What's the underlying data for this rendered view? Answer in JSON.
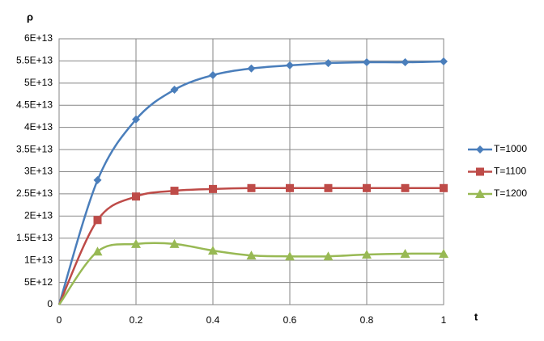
{
  "chart_data": {
    "type": "scatter",
    "xlabel": "t",
    "ylabel": "ρ",
    "x": [
      0,
      0.1,
      0.2,
      0.3,
      0.4,
      0.5,
      0.6,
      0.7,
      0.8,
      0.9,
      1
    ],
    "series": [
      {
        "name": "T=1000",
        "color": "#4a7ebb",
        "marker": "diamond",
        "values": [
          0,
          28100000000000.0,
          41800000000000.0,
          48500000000000.0,
          51800000000000.0,
          53300000000000.0,
          54000000000000.0,
          54500000000000.0,
          54700000000000.0,
          54700000000000.0,
          54900000000000.0
        ]
      },
      {
        "name": "T=1100",
        "color": "#be4b48",
        "marker": "square",
        "values": [
          0,
          19100000000000.0,
          24400000000000.0,
          25700000000000.0,
          26100000000000.0,
          26300000000000.0,
          26300000000000.0,
          26300000000000.0,
          26300000000000.0,
          26300000000000.0,
          26300000000000.0
        ]
      },
      {
        "name": "T=1200",
        "color": "#98b954",
        "marker": "triangle",
        "values": [
          0,
          12000000000000.0,
          13700000000000.0,
          13700000000000.0,
          12200000000000.0,
          11100000000000.0,
          10900000000000.0,
          10900000000000.0,
          11300000000000.0,
          11500000000000.0,
          11500000000000.0
        ]
      }
    ],
    "xlim": [
      0,
      1
    ],
    "xticks": [
      0,
      0.2,
      0.4,
      0.6,
      0.8,
      1
    ],
    "ylim": [
      0,
      60000000000000.0
    ],
    "yticks": [
      0,
      {
        "value": 5000000000000.0,
        "label": "5E+12"
      },
      {
        "value": 10000000000000.0,
        "label": "1E+13"
      },
      {
        "value": 15000000000000.0,
        "label": "1.5E+13"
      },
      {
        "value": 20000000000000.0,
        "label": "2E+13"
      },
      {
        "value": 25000000000000.0,
        "label": "2.5E+13"
      },
      {
        "value": 30000000000000.0,
        "label": "3E+13"
      },
      {
        "value": 35000000000000.0,
        "label": "3.5E+13"
      },
      {
        "value": 40000000000000.0,
        "label": "4E+13"
      },
      {
        "value": 45000000000000.0,
        "label": "4.5E+13"
      },
      {
        "value": 50000000000000.0,
        "label": "5E+13"
      },
      {
        "value": 55000000000000.0,
        "label": "5.5E+13"
      },
      {
        "value": 60000000000000.0,
        "label": "6E+13"
      }
    ],
    "grid": true,
    "legend": "right"
  }
}
